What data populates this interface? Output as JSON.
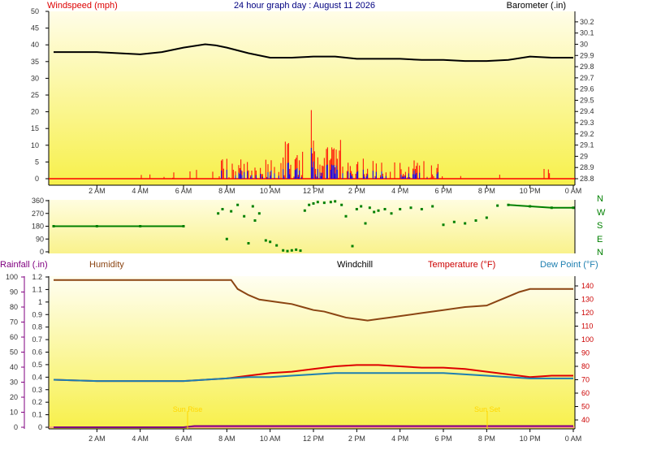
{
  "colors": {
    "windspeed": "#ff0000",
    "windgust": "#0000ff",
    "barometer": "#000000",
    "direction": "#008000",
    "humidity": "#8b4513",
    "temperature": "#dd0000",
    "dewpoint": "#1e7fb0",
    "rainfall": "#800080",
    "sunline": "#ffd700",
    "label_dark": "#333333"
  },
  "chart_data": [
    {
      "type": "line",
      "title": "24 hour graph day : August 11 2026",
      "ylabel": "Windspeed (mph)",
      "y2label": "Barometer (.in)",
      "x_ticks": [
        "2 AM",
        "4 AM",
        "6 AM",
        "8 AM",
        "10 AM",
        "12 PM",
        "2 PM",
        "4 PM",
        "6 PM",
        "8 PM",
        "10 PM",
        "0 AM"
      ],
      "y_ticks": [
        "0",
        "5",
        "10",
        "15",
        "20",
        "25",
        "30",
        "35",
        "40",
        "45",
        "50"
      ],
      "ylim": [
        0,
        50
      ],
      "y2_ticks": [
        "28.8",
        "28.9",
        "29",
        "29.1",
        "29.2",
        "29.3",
        "29.4",
        "29.5",
        "29.6",
        "29.7",
        "29.8",
        "29.9",
        "30",
        "30.1",
        "30.2"
      ],
      "y2lim": [
        28.8,
        30.25
      ],
      "series": [
        {
          "name": "Barometer (.in)",
          "axis": "right",
          "x": [
            0,
            1,
            2,
            3,
            4,
            5,
            6,
            7,
            7.5,
            8,
            9,
            10,
            11,
            12,
            13,
            14,
            15,
            16,
            17,
            18,
            19,
            20,
            21,
            22,
            23,
            24
          ],
          "y": [
            29.93,
            29.93,
            29.93,
            29.92,
            29.91,
            29.93,
            29.97,
            30.0,
            29.99,
            29.97,
            29.92,
            29.88,
            29.88,
            29.89,
            29.89,
            29.87,
            29.87,
            29.87,
            29.86,
            29.86,
            29.85,
            29.85,
            29.86,
            29.89,
            29.88,
            29.88
          ]
        }
      ]
    },
    {
      "type": "scatter",
      "ylabel": "",
      "y_ticks": [
        "0",
        "90",
        "180",
        "270",
        "360"
      ],
      "ylim": [
        0,
        360
      ],
      "compass": [
        "N",
        "W",
        "S",
        "E",
        "N"
      ],
      "series": [
        {
          "name": "",
          "x": [
            0,
            2,
            4,
            6,
            7.6,
            7.8,
            8.0,
            8.2,
            8.5,
            8.8,
            9.0,
            9.2,
            9.3,
            9.5,
            9.8,
            10.0,
            10.3,
            10.6,
            10.8,
            11.0,
            11.2,
            11.4,
            11.6,
            11.8,
            12.0,
            12.2,
            12.5,
            12.8,
            13.0,
            13.3,
            13.5,
            13.8,
            14.0,
            14.2,
            14.4,
            14.6,
            14.8,
            15.0,
            15.3,
            15.6,
            16.0,
            16.5,
            17.0,
            17.5,
            18.0,
            18.5,
            19.0,
            19.5,
            20.0,
            20.5,
            21,
            22,
            23,
            24
          ],
          "y": [
            180,
            180,
            180,
            180,
            270,
            300,
            90,
            285,
            330,
            250,
            60,
            320,
            220,
            270,
            80,
            70,
            45,
            10,
            5,
            10,
            15,
            8,
            290,
            330,
            340,
            350,
            345,
            350,
            355,
            330,
            250,
            40,
            300,
            320,
            200,
            310,
            280,
            290,
            300,
            270,
            300,
            310,
            300,
            320,
            190,
            210,
            200,
            220,
            240,
            325,
            330,
            320,
            310,
            310
          ]
        }
      ]
    },
    {
      "type": "line",
      "ylabel": "Rainfall (.in)",
      "x_ticks": [
        "2 AM",
        "4 AM",
        "6 AM",
        "8 AM",
        "10 AM",
        "12 PM",
        "2 PM",
        "4 PM",
        "6 PM",
        "8 PM",
        "10 PM",
        "0 AM"
      ],
      "y_ticks_left_outer": [
        "0",
        "10",
        "20",
        "30",
        "40",
        "50",
        "60",
        "70",
        "80",
        "90",
        "100"
      ],
      "y_ticks_left_inner": [
        "0",
        "0.1",
        "0.2",
        "0.3",
        "0.4",
        "0.5",
        "0.6",
        "0.7",
        "0.8",
        "0.9",
        "1",
        "1.1",
        "1.2"
      ],
      "y_ticks_right": [
        "40",
        "50",
        "60",
        "70",
        "80",
        "90",
        "100",
        "110",
        "120",
        "130",
        "140"
      ],
      "labels": {
        "humidity": "Humidity",
        "windchill": "Windchill",
        "temperature": "Temperature (°F)",
        "dewpoint": "Dew Point (°F)"
      },
      "sun": [
        {
          "label": "Sun Rise",
          "x": 6.0
        },
        {
          "label": "Sun Set",
          "x": 20.0
        }
      ],
      "series": [
        {
          "name": "Humidity",
          "axis": "humidity",
          "x": [
            0,
            2,
            4,
            6,
            7,
            8.2,
            8.5,
            9,
            9.5,
            10,
            10.5,
            11,
            11.5,
            12,
            12.5,
            13,
            13.5,
            14,
            14.5,
            15,
            15.5,
            16,
            17,
            18,
            19,
            20,
            20.5,
            21,
            21.5,
            22,
            23,
            24
          ],
          "y": [
            98,
            98,
            98,
            98,
            98,
            98,
            92,
            88,
            85,
            84,
            83,
            82,
            80,
            78,
            77,
            75,
            73,
            72,
            71,
            72,
            73,
            74,
            76,
            78,
            80,
            81,
            84,
            87,
            90,
            92,
            92,
            92
          ]
        },
        {
          "name": "Temperature (°F)",
          "axis": "temp",
          "x": [
            0,
            2,
            4,
            6,
            7,
            8,
            9,
            10,
            11,
            12,
            13,
            14,
            15,
            16,
            17,
            18,
            19,
            20,
            21,
            22,
            23,
            24
          ],
          "y": [
            70,
            69,
            69,
            69,
            70,
            71,
            73,
            75,
            76,
            78,
            80,
            81,
            81,
            80,
            79,
            79,
            78,
            76,
            74,
            72,
            73,
            73
          ]
        },
        {
          "name": "Dew Point (°F)",
          "axis": "temp",
          "x": [
            0,
            2,
            4,
            6,
            7,
            8,
            9,
            10,
            11,
            12,
            13,
            14,
            15,
            16,
            17,
            18,
            19,
            20,
            21,
            22,
            23,
            24
          ],
          "y": [
            70,
            69,
            69,
            69,
            70,
            71,
            72,
            72,
            73,
            74,
            75,
            75,
            75,
            75,
            75,
            75,
            74,
            73,
            72,
            71,
            71,
            71
          ]
        },
        {
          "name": "Rainfall (.in)",
          "axis": "rain",
          "x": [
            0,
            2,
            4,
            6,
            6.5,
            8,
            10,
            12,
            14,
            16,
            18,
            20,
            22,
            24
          ],
          "y": [
            0,
            0,
            0,
            0,
            0.01,
            0.01,
            0.01,
            0.01,
            0.01,
            0.01,
            0.01,
            0.01,
            0.01,
            0.01
          ]
        }
      ]
    }
  ]
}
